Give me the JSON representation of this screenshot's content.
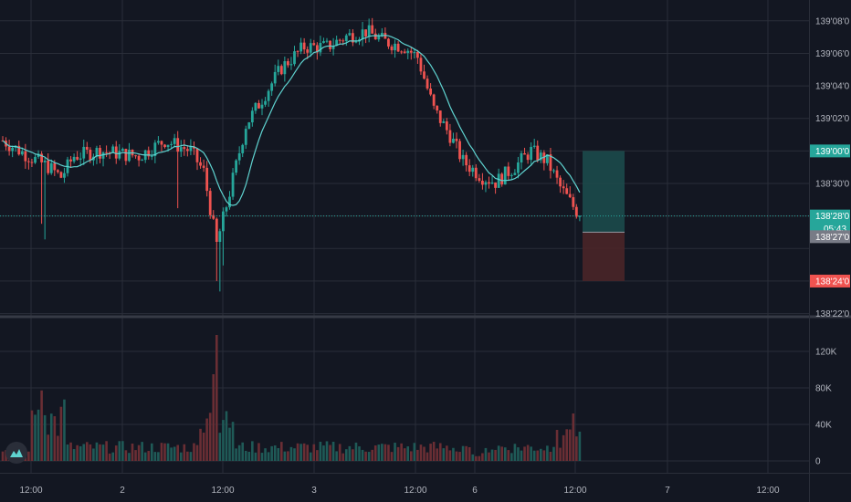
{
  "chart_data": {
    "type": "candlestick",
    "grid": true,
    "price_axis_labels": [
      "139'08'0",
      "139'06'0",
      "139'04'0",
      "139'02'0",
      "139'00'0",
      "138'30'0",
      "138'28'0",
      "138'27'0",
      "138'24'0",
      "138'22'0"
    ],
    "price_axis_ticks": [
      {
        "label": "139'08'0",
        "value": 139.25
      },
      {
        "label": "139'06'0",
        "value": 139.1875
      },
      {
        "label": "139'04'0",
        "value": 139.125
      },
      {
        "label": "139'02'0",
        "value": 139.0625
      },
      {
        "label": "138'30'0",
        "value": 138.9375
      },
      {
        "label": "138'22'0",
        "value": 138.6875
      }
    ],
    "volume_axis_labels": [
      {
        "label": "120K",
        "value": 120000
      },
      {
        "label": "80K",
        "value": 80000
      },
      {
        "label": "40K",
        "value": 40000
      },
      {
        "label": "0",
        "value": 0
      }
    ],
    "time_axis_labels": [
      "12:00",
      "2",
      "12:00",
      "3",
      "12:00",
      "6",
      "12:00",
      "7",
      "12:00"
    ],
    "price_range": [
      138.685,
      139.29
    ],
    "volume_range": [
      0,
      140000
    ],
    "current_price": {
      "label": "138'28'0",
      "value": 138.875,
      "countdown": "05:43"
    },
    "position": {
      "entry": {
        "label": "138'27'0",
        "value": 138.844
      },
      "target": {
        "label": "139'00'0",
        "value": 139.0
      },
      "stop": {
        "label": "138'24'0",
        "value": 138.75
      }
    },
    "colors": {
      "up": "#26a69a",
      "down": "#ef5350",
      "ma": "#5fd3d0",
      "grid": "#2a2e39",
      "axis_text": "#b2b5be",
      "current_price_tag": "#26a69a",
      "entry_tag": "#787b86",
      "target_tag": "#26a69a",
      "stop_tag": "#ef5350",
      "target_zone": "#1c4a4b",
      "stop_zone": "#4a2528"
    }
  },
  "logo": {
    "icon": "tradingview-logo-icon"
  }
}
